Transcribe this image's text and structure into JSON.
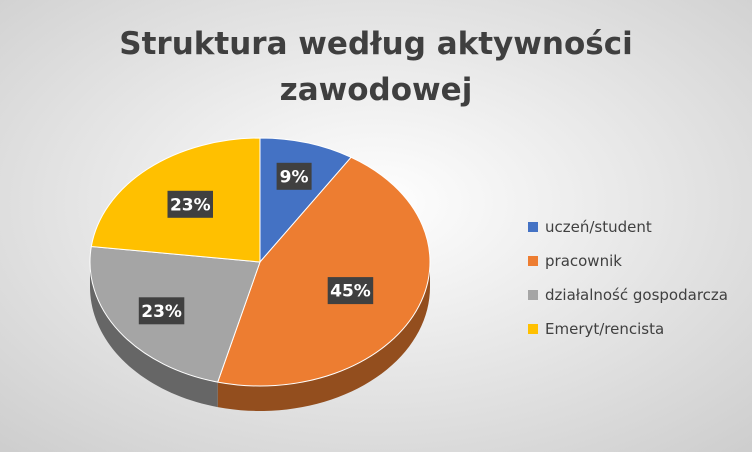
{
  "chart_data": {
    "type": "pie",
    "title": "Struktura według aktywności zawodowej",
    "title_lines": [
      "Struktura według aktywności",
      "zawodowej"
    ],
    "categories": [
      "uczeń/student",
      "pracownik",
      "działalność gospodarcza",
      "Emeryt/rencista"
    ],
    "values": [
      9,
      45,
      23,
      23
    ],
    "labels": [
      "9%",
      "45%",
      "23%",
      "23%"
    ],
    "colors": [
      "#4472c4",
      "#ed7d31",
      "#a5a5a5",
      "#ffc000"
    ],
    "legend_position": "right",
    "style": "3d"
  }
}
